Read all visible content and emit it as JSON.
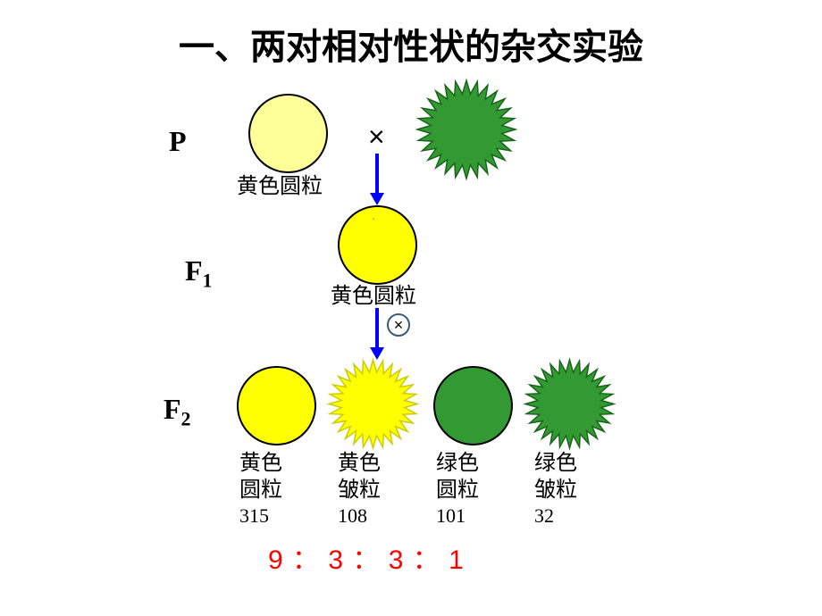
{
  "title": "一、两对相对性状的杂交实验",
  "generations": {
    "P": "P",
    "F1": "F",
    "F1sub": "1",
    "F2": "F",
    "F2sub": "2"
  },
  "cross": "×",
  "parents": {
    "p1_label": "黄色圆粒",
    "p1_fill": "#ffff99",
    "p1_stroke": "#000000",
    "p2_fill": "#339933",
    "p2_stroke": "#1a661a"
  },
  "f1": {
    "label": "黄色圆粒",
    "fill": "#ffff00",
    "stroke": "#000000"
  },
  "f2": [
    {
      "type": "circle",
      "fill": "#ffff00",
      "stroke": "#000000",
      "label1": "黄色",
      "label2": "圆粒",
      "count": "315"
    },
    {
      "type": "star",
      "fill": "#ffff00",
      "stroke": "#cccc00",
      "label1": "黄色",
      "label2": "皱粒",
      "count": "108"
    },
    {
      "type": "circle",
      "fill": "#339933",
      "stroke": "#000000",
      "label1": "绿色",
      "label2": "圆粒",
      "count": "101"
    },
    {
      "type": "star",
      "fill": "#339933",
      "stroke": "#1a661a",
      "label1": "绿色",
      "label2": "皱粒",
      "count": "32"
    }
  ],
  "ratio": {
    "text": "9 ： 3 ： 3 ： 1",
    "color": "#ff0000"
  },
  "arrow_color": "#0000ff",
  "page_indicator": ".",
  "starburst_points": 28
}
